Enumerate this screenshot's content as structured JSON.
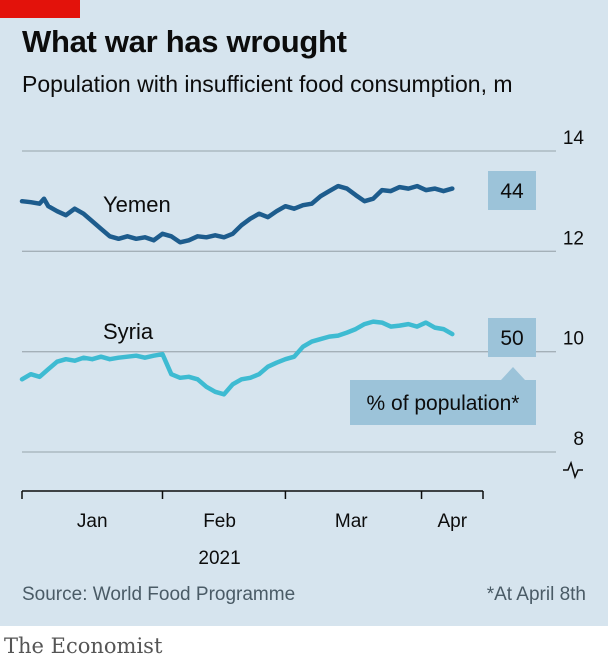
{
  "header": {
    "title": "What war has wrought",
    "subtitle": "Population with insufficient food consumption, m"
  },
  "footer": {
    "source": "Source: World Food Programme",
    "footnote": "*At April 8th",
    "brand": "The Economist"
  },
  "colors": {
    "background": "#d6e4ee",
    "accent_red": "#e3120b",
    "yemen": "#1d5c8d",
    "syria": "#3ebbd2",
    "label_box": "#9cc3d9",
    "gridline": "#a4b0b8"
  },
  "chart_data": {
    "type": "line",
    "title": "What war has wrought",
    "subtitle": "Population with insufficient food consumption, m",
    "x_axis": {
      "type": "date",
      "range": [
        "2020-12-31",
        "2021-04-15"
      ],
      "ticks": [
        "2020-12-31",
        "2021-02-01",
        "2021-03-01",
        "2021-04-01",
        "2021-04-15"
      ],
      "labels": [
        {
          "text": "Jan",
          "date": "2021-01-16"
        },
        {
          "text": "Feb",
          "date": "2021-02-14"
        },
        {
          "text": "Mar",
          "date": "2021-03-16"
        },
        {
          "text": "Apr",
          "date": "2021-04-08"
        }
      ],
      "year_label": "2021"
    },
    "y_axis": {
      "range": [
        8,
        14
      ],
      "ticks": [
        8,
        10,
        12,
        14
      ],
      "axis_break": true,
      "position": "right",
      "grid": true
    },
    "series": [
      {
        "name": "Yemen",
        "end_label": "44",
        "x": [
          "2020-12-31",
          "2021-01-02",
          "2021-01-04",
          "2021-01-05",
          "2021-01-06",
          "2021-01-08",
          "2021-01-10",
          "2021-01-12",
          "2021-01-14",
          "2021-01-16",
          "2021-01-18",
          "2021-01-20",
          "2021-01-22",
          "2021-01-24",
          "2021-01-26",
          "2021-01-28",
          "2021-01-30",
          "2021-02-01",
          "2021-02-03",
          "2021-02-05",
          "2021-02-07",
          "2021-02-09",
          "2021-02-11",
          "2021-02-13",
          "2021-02-15",
          "2021-02-17",
          "2021-02-19",
          "2021-02-21",
          "2021-02-23",
          "2021-02-25",
          "2021-02-27",
          "2021-03-01",
          "2021-03-03",
          "2021-03-05",
          "2021-03-07",
          "2021-03-09",
          "2021-03-11",
          "2021-03-13",
          "2021-03-15",
          "2021-03-17",
          "2021-03-19",
          "2021-03-21",
          "2021-03-23",
          "2021-03-25",
          "2021-03-27",
          "2021-03-29",
          "2021-03-31",
          "2021-04-02",
          "2021-04-04",
          "2021-04-06",
          "2021-04-08"
        ],
        "values": [
          13.0,
          12.98,
          12.95,
          13.05,
          12.9,
          12.8,
          12.72,
          12.85,
          12.75,
          12.6,
          12.45,
          12.3,
          12.25,
          12.3,
          12.25,
          12.28,
          12.22,
          12.35,
          12.3,
          12.18,
          12.22,
          12.3,
          12.28,
          12.32,
          12.28,
          12.35,
          12.52,
          12.65,
          12.75,
          12.68,
          12.8,
          12.9,
          12.85,
          12.92,
          12.95,
          13.1,
          13.2,
          13.3,
          13.25,
          13.12,
          13.0,
          13.05,
          13.22,
          13.2,
          13.28,
          13.25,
          13.3,
          13.22,
          13.25,
          13.2,
          13.25
        ]
      },
      {
        "name": "Syria",
        "end_label": "50",
        "x": [
          "2020-12-31",
          "2021-01-02",
          "2021-01-04",
          "2021-01-06",
          "2021-01-08",
          "2021-01-10",
          "2021-01-12",
          "2021-01-14",
          "2021-01-16",
          "2021-01-18",
          "2021-01-20",
          "2021-01-22",
          "2021-01-24",
          "2021-01-26",
          "2021-01-28",
          "2021-01-30",
          "2021-02-01",
          "2021-02-03",
          "2021-02-05",
          "2021-02-07",
          "2021-02-09",
          "2021-02-11",
          "2021-02-13",
          "2021-02-15",
          "2021-02-17",
          "2021-02-19",
          "2021-02-21",
          "2021-02-23",
          "2021-02-25",
          "2021-02-27",
          "2021-03-01",
          "2021-03-03",
          "2021-03-05",
          "2021-03-07",
          "2021-03-09",
          "2021-03-11",
          "2021-03-13",
          "2021-03-15",
          "2021-03-17",
          "2021-03-19",
          "2021-03-21",
          "2021-03-23",
          "2021-03-25",
          "2021-03-27",
          "2021-03-29",
          "2021-03-31",
          "2021-04-02",
          "2021-04-04",
          "2021-04-06",
          "2021-04-08"
        ],
        "values": [
          9.45,
          9.55,
          9.5,
          9.65,
          9.8,
          9.85,
          9.82,
          9.88,
          9.85,
          9.9,
          9.85,
          9.88,
          9.9,
          9.92,
          9.88,
          9.92,
          9.95,
          9.55,
          9.48,
          9.5,
          9.45,
          9.3,
          9.2,
          9.15,
          9.35,
          9.45,
          9.48,
          9.55,
          9.7,
          9.78,
          9.85,
          9.9,
          10.1,
          10.2,
          10.25,
          10.3,
          10.32,
          10.38,
          10.45,
          10.55,
          10.6,
          10.58,
          10.5,
          10.52,
          10.55,
          10.5,
          10.58,
          10.48,
          10.45,
          10.35
        ]
      }
    ],
    "annotation": "% of population*"
  }
}
